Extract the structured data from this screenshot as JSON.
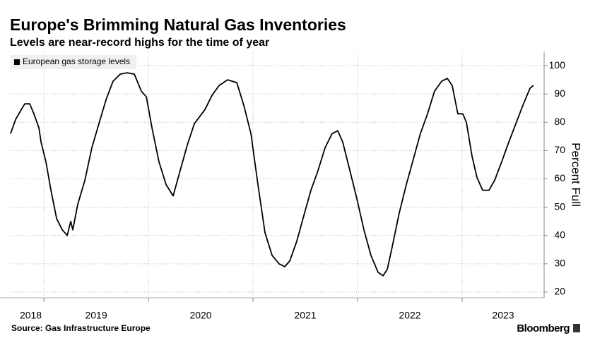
{
  "title": "Europe's Brimming Natural Gas Inventories",
  "subtitle": "Levels are near-record highs for the time of year",
  "source": "Source: Gas Infrastructure Europe",
  "brand": "Bloomberg",
  "chart_data": {
    "type": "line",
    "y_label": "Percent Full",
    "legend": "top-left",
    "grid": true,
    "xlim": [
      2018.682,
      2023.784
    ],
    "xticks": [
      {
        "value": 2018,
        "label": "2018"
      },
      {
        "value": 2019,
        "label": "2019"
      },
      {
        "value": 2020,
        "label": "2020"
      },
      {
        "value": 2021,
        "label": "2021"
      },
      {
        "value": 2022,
        "label": "2022"
      },
      {
        "value": 2023,
        "label": "2023"
      }
    ],
    "ylim": [
      18,
      105
    ],
    "yticks": [
      20,
      30,
      40,
      50,
      60,
      70,
      80,
      90,
      100
    ],
    "x": [
      2018.682,
      2018.73,
      2018.784,
      2018.818,
      2018.865,
      2018.905,
      2018.953,
      2018.973,
      2019.02,
      2019.068,
      2019.122,
      2019.176,
      2019.223,
      2019.257,
      2019.277,
      2019.324,
      2019.392,
      2019.459,
      2019.527,
      2019.595,
      2019.662,
      2019.73,
      2019.797,
      2019.865,
      2019.932,
      2019.98,
      2020.034,
      2020.101,
      2020.169,
      2020.236,
      2020.304,
      2020.372,
      2020.439,
      2020.541,
      2020.608,
      2020.676,
      2020.757,
      2020.845,
      2020.912,
      2020.98,
      2021.047,
      2021.115,
      2021.182,
      2021.25,
      2021.304,
      2021.351,
      2021.419,
      2021.486,
      2021.554,
      2021.622,
      2021.689,
      2021.757,
      2021.811,
      2021.858,
      2021.926,
      2021.993,
      2022.061,
      2022.128,
      2022.196,
      2022.243,
      2022.284,
      2022.331,
      2022.399,
      2022.466,
      2022.534,
      2022.601,
      2022.669,
      2022.736,
      2022.804,
      2022.858,
      2022.905,
      2022.959,
      2023.007,
      2023.041,
      2023.095,
      2023.142,
      2023.196,
      2023.257,
      2023.311,
      2023.378,
      2023.446,
      2023.514,
      2023.581,
      2023.649,
      2023.682
    ],
    "series": [
      {
        "name": "European gas storage levels",
        "color": "#000000",
        "values": [
          76,
          81,
          84.5,
          86.5,
          86.5,
          83,
          78,
          73,
          66,
          56,
          46,
          42,
          40,
          45,
          42,
          51,
          59.5,
          71,
          79.5,
          88,
          94.5,
          97,
          97.5,
          97,
          91,
          89,
          78,
          66,
          58,
          54,
          63,
          72,
          79.5,
          84.5,
          89.5,
          93,
          95,
          94,
          86,
          76,
          58,
          41,
          33,
          30,
          29,
          31,
          38,
          47,
          56,
          63,
          71,
          76,
          77,
          73,
          63,
          53,
          42,
          33,
          27,
          25.8,
          28,
          36,
          48,
          58,
          67,
          76,
          83,
          91,
          94.5,
          95.5,
          93,
          83,
          83,
          80,
          68,
          60.5,
          56,
          56,
          59.5,
          66,
          73,
          79.5,
          86,
          92,
          93
        ]
      }
    ]
  }
}
